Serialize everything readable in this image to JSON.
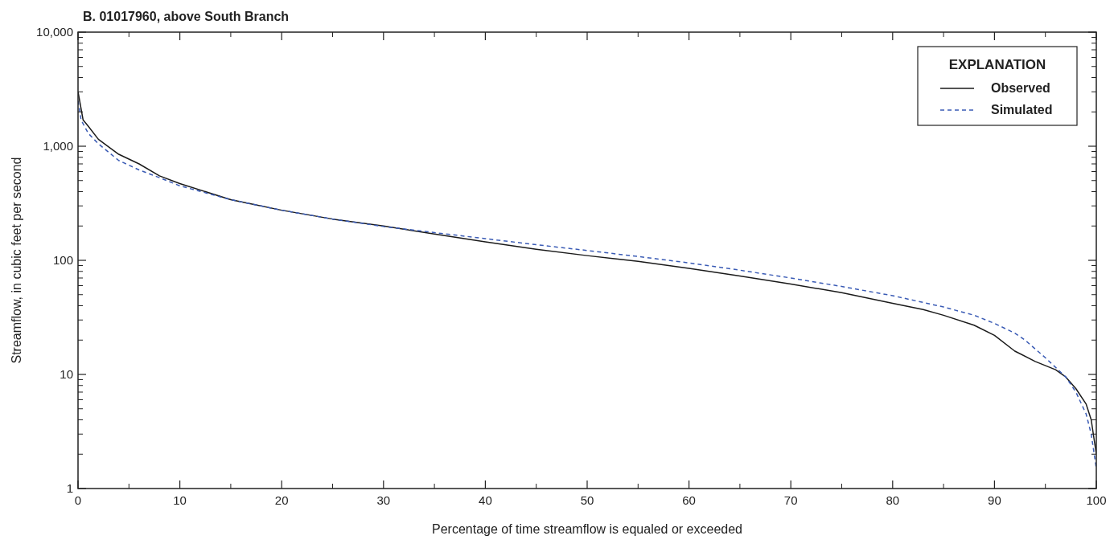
{
  "chart_data": {
    "type": "line",
    "title": "B. 01017960, above South Branch",
    "xlabel": "Percentage of time streamflow is equaled or exceeded",
    "ylabel": "Streamflow, in cubic feet per second",
    "legend_title": "EXPLANATION",
    "legend": "top right",
    "log": "y",
    "grid": false,
    "xlim": [
      0,
      100
    ],
    "xticks": [
      0,
      10,
      20,
      30,
      40,
      50,
      60,
      70,
      80,
      90,
      100
    ],
    "ylim": [
      1,
      10000
    ],
    "yticks": [
      1,
      10,
      100,
      {
        "value": 1000,
        "label": "1,000"
      },
      {
        "value": 10000,
        "label": "10,000"
      }
    ],
    "series": [
      {
        "name": "Observed",
        "color": "#1a1a1a",
        "line_style": "solid",
        "x": [
          0,
          0.5,
          1,
          2,
          4,
          6,
          8,
          10,
          15,
          20,
          25,
          30,
          35,
          40,
          45,
          50,
          55,
          60,
          65,
          70,
          75,
          80,
          83,
          85,
          88,
          90,
          92,
          94,
          96,
          97,
          98,
          99,
          99.5,
          100
        ],
        "values": [
          3000,
          1700,
          1500,
          1150,
          850,
          700,
          550,
          470,
          340,
          275,
          230,
          200,
          170,
          145,
          125,
          110,
          98,
          85,
          73,
          62,
          52,
          42,
          37,
          33,
          27,
          22,
          16,
          13,
          11,
          9.5,
          7.5,
          5.5,
          4,
          2
        ]
      },
      {
        "name": "Simulated",
        "color": "#3a5bb5",
        "line_style": "dashed",
        "x": [
          0,
          0.3,
          1,
          2,
          4,
          6,
          8,
          10,
          15,
          20,
          25,
          30,
          35,
          40,
          45,
          50,
          55,
          60,
          65,
          70,
          75,
          80,
          85,
          88,
          90,
          92,
          93,
          95,
          97,
          98,
          99,
          99.5,
          100
        ],
        "values": [
          2500,
          1700,
          1300,
          1050,
          750,
          620,
          530,
          450,
          340,
          275,
          230,
          198,
          175,
          155,
          137,
          122,
          108,
          95,
          82,
          70,
          59,
          49,
          39,
          33,
          28,
          23,
          20,
          14,
          9.5,
          7,
          4.5,
          3,
          1.5
        ]
      }
    ]
  }
}
